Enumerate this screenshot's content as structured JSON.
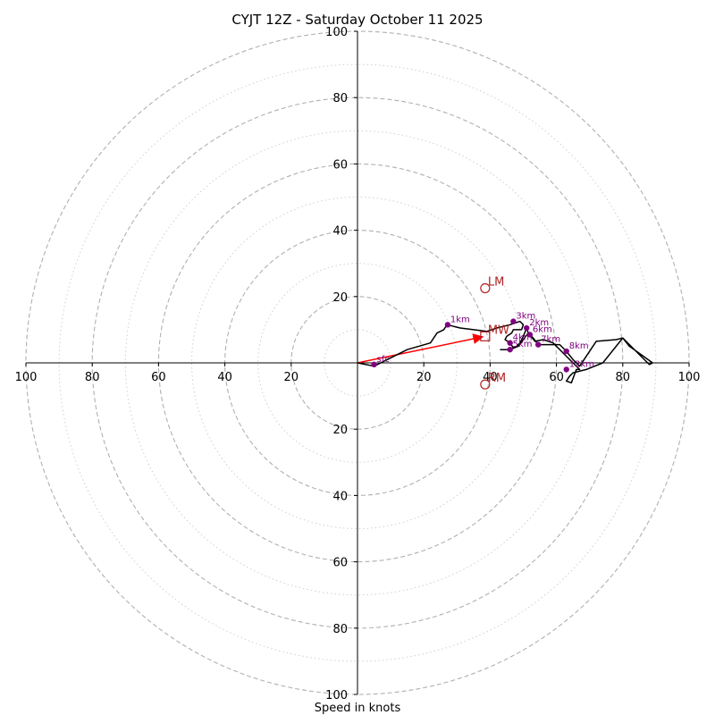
{
  "chart_data": {
    "type": "hodograph",
    "title": "CYJT 12Z - Saturday October 11 2025",
    "xlabel": "Speed in knots",
    "max_speed": 100,
    "rings_major": [
      20,
      40,
      60,
      80,
      100
    ],
    "rings_minor": [
      10,
      30,
      50,
      70,
      90
    ],
    "x_tick_labels": [
      "100",
      "80",
      "60",
      "40",
      "20",
      "20",
      "40",
      "60",
      "80",
      "100"
    ],
    "x_tick_values": [
      -100,
      -80,
      -60,
      -40,
      -20,
      20,
      40,
      60,
      80,
      100
    ],
    "y_tick_labels": [
      "100",
      "80",
      "60",
      "40",
      "20",
      "20",
      "40",
      "60",
      "80",
      "100"
    ],
    "y_tick_values": [
      100,
      80,
      60,
      40,
      20,
      -20,
      -40,
      -60,
      -80,
      -100
    ],
    "profile": [
      [
        0,
        0
      ],
      [
        5,
        -1
      ],
      [
        15,
        4
      ],
      [
        22,
        6
      ],
      [
        24,
        9
      ],
      [
        26,
        10
      ],
      [
        27,
        11.5
      ],
      [
        29,
        11
      ],
      [
        31,
        10.5
      ],
      [
        35,
        10
      ],
      [
        39,
        9.5
      ],
      [
        42,
        10.5
      ],
      [
        46,
        11.5
      ],
      [
        49,
        12.5
      ],
      [
        50,
        11.5
      ],
      [
        49.5,
        10
      ],
      [
        47,
        10
      ],
      [
        46.5,
        9
      ],
      [
        45,
        8
      ],
      [
        44.5,
        7
      ],
      [
        46,
        6
      ],
      [
        47,
        4.5
      ],
      [
        48,
        5
      ],
      [
        49,
        6
      ],
      [
        50,
        8
      ],
      [
        51,
        10.5
      ],
      [
        51.5,
        9
      ],
      [
        52,
        8.5
      ],
      [
        53,
        7.5
      ],
      [
        54.5,
        5.5
      ],
      [
        56,
        5.5
      ],
      [
        61,
        5.5
      ],
      [
        63,
        3.5
      ],
      [
        65,
        1
      ],
      [
        67,
        -1
      ],
      [
        69,
        2
      ],
      [
        72,
        6.5
      ],
      [
        78,
        7
      ],
      [
        80,
        7.5
      ],
      [
        84,
        3.5
      ],
      [
        88,
        -0.5
      ],
      [
        89,
        0
      ],
      [
        82,
        5
      ],
      [
        80,
        7.5
      ],
      [
        74,
        0
      ],
      [
        69,
        -2
      ],
      [
        65,
        -3
      ],
      [
        64,
        -4
      ],
      [
        63,
        -5.5
      ],
      [
        64.5,
        -6
      ],
      [
        66,
        -2
      ],
      [
        67,
        -2
      ],
      [
        63,
        2
      ],
      [
        59,
        6
      ],
      [
        56,
        7
      ],
      [
        53.5,
        6.5
      ],
      [
        52,
        8.5
      ],
      [
        51.5,
        9
      ],
      [
        50,
        7
      ],
      [
        48.5,
        5
      ],
      [
        46,
        4
      ],
      [
        43,
        4
      ]
    ],
    "height_markers": [
      {
        "label": "sfc",
        "u": 5,
        "v": -0.5
      },
      {
        "label": "1km",
        "u": 27.2,
        "v": 11.5
      },
      {
        "label": "2km",
        "u": 51,
        "v": 10.5
      },
      {
        "label": "3km",
        "u": 47,
        "v": 12.5
      },
      {
        "label": "4km",
        "u": 46,
        "v": 6
      },
      {
        "label": "5km",
        "u": 46,
        "v": 4
      },
      {
        "label": "6km",
        "u": 52,
        "v": 8.5
      },
      {
        "label": "7km",
        "u": 54.5,
        "v": 5.5
      },
      {
        "label": "8km",
        "u": 63,
        "v": 3.5
      },
      {
        "label": "12km",
        "u": 63,
        "v": -2
      }
    ],
    "storm_motions": [
      {
        "label": "LM",
        "u": 38.5,
        "v": 22.5,
        "marker": "circle"
      },
      {
        "label": "MW",
        "u": 38.5,
        "v": 8,
        "marker": "square"
      },
      {
        "label": "RM",
        "u": 38.5,
        "v": -6.5,
        "marker": "circle"
      }
    ],
    "shear_vector": {
      "from": [
        0,
        0
      ],
      "to": [
        38.5,
        8
      ]
    },
    "colors": {
      "ring": "#b0b0b0",
      "profile": "#000000",
      "marker": "#800080",
      "motion": "#b22222",
      "vector": "#ff0000"
    }
  }
}
